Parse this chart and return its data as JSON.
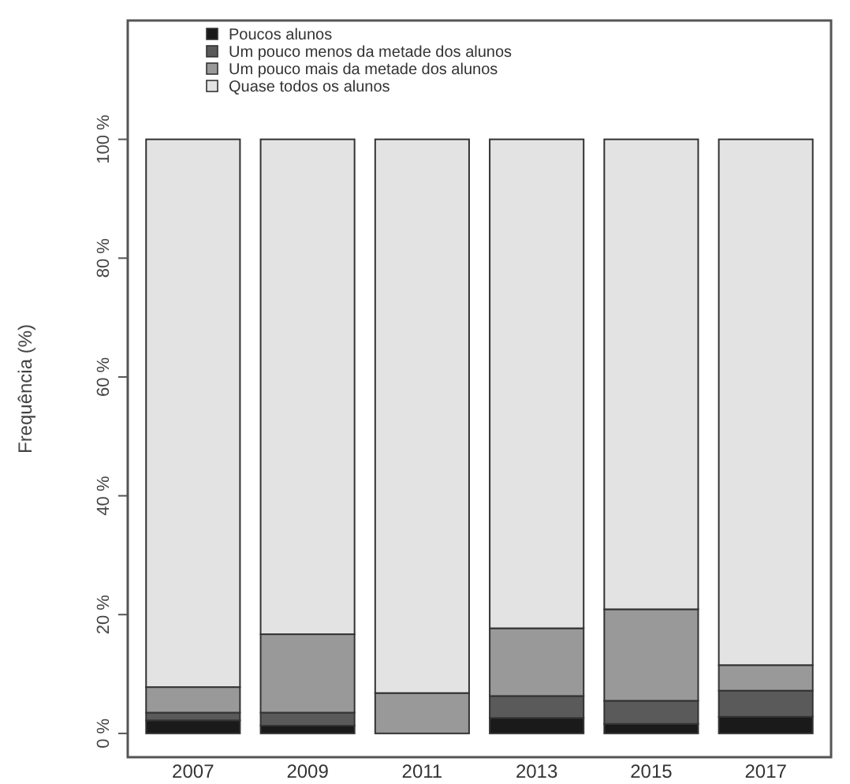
{
  "chart_data": {
    "type": "bar",
    "stacked": true,
    "ylabel": "Frequência (%)",
    "categories": [
      "2007",
      "2009",
      "2011",
      "2013",
      "2015",
      "2017"
    ],
    "series": [
      {
        "name": "Poucos alunos",
        "color": "#1a1a1a",
        "values": [
          2.2,
          1.3,
          0,
          2.6,
          1.6,
          2.8
        ]
      },
      {
        "name": "Um pouco menos da metade dos alunos",
        "color": "#5a5a5a",
        "values": [
          1.3,
          2.2,
          0,
          3.7,
          3.9,
          4.4
        ]
      },
      {
        "name": "Um pouco mais da metade dos alunos",
        "color": "#999999",
        "values": [
          4.3,
          13.2,
          6.8,
          11.4,
          15.4,
          4.3
        ]
      },
      {
        "name": "Quase todos os alunos",
        "color": "#e3e3e3",
        "values": [
          92.2,
          83.3,
          93.2,
          82.3,
          79.1,
          88.5
        ]
      }
    ],
    "ylim": [
      -4,
      120
    ],
    "yticks": [
      {
        "value": 0,
        "label": "0 %"
      },
      {
        "value": 20,
        "label": "20 %"
      },
      {
        "value": 40,
        "label": "40 %"
      },
      {
        "value": 60,
        "label": "60 %"
      },
      {
        "value": 80,
        "label": "80 %"
      },
      {
        "value": 100,
        "label": "100 %"
      }
    ],
    "grid": false,
    "legend": "top left"
  }
}
